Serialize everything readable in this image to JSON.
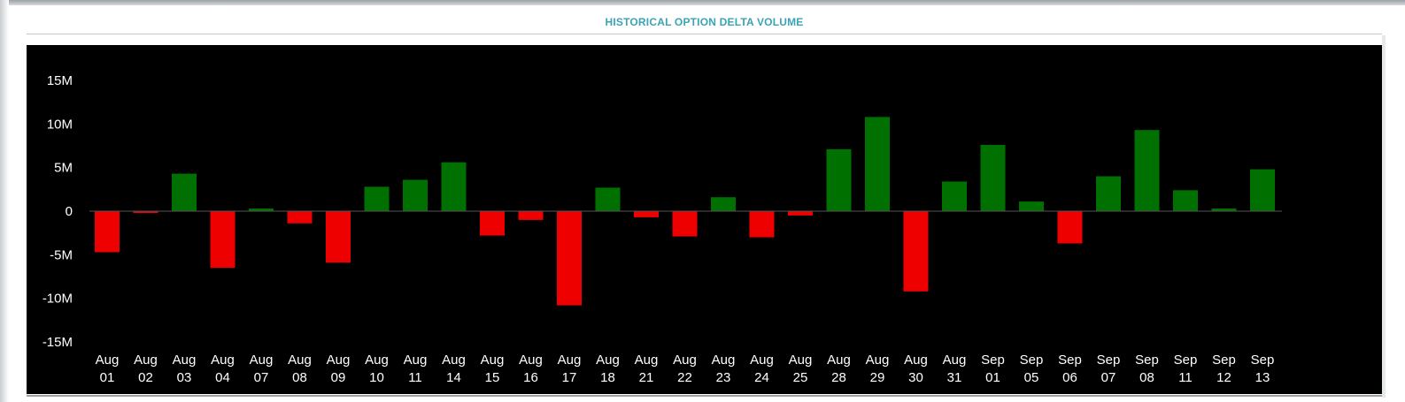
{
  "header": {
    "title": "HISTORICAL OPTION DELTA VOLUME"
  },
  "colors": {
    "positive": "#007000",
    "negative": "#ee0000",
    "background": "#000000",
    "text": "#ffffff",
    "title": "#3aa3b5"
  },
  "chart_data": {
    "type": "bar",
    "title": "HISTORICAL OPTION DELTA VOLUME",
    "xlabel": "",
    "ylabel": "",
    "ylim": [
      -15000000,
      15000000
    ],
    "yticks": [
      {
        "value": 15000000,
        "label": "15M"
      },
      {
        "value": 10000000,
        "label": "10M"
      },
      {
        "value": 5000000,
        "label": "5M"
      },
      {
        "value": 0,
        "label": "0"
      },
      {
        "value": -5000000,
        "label": "-5M"
      },
      {
        "value": -10000000,
        "label": "-10M"
      },
      {
        "value": -15000000,
        "label": "-15M"
      }
    ],
    "grid": false,
    "legend": "none",
    "categories": [
      {
        "month": "Aug",
        "day": "01"
      },
      {
        "month": "Aug",
        "day": "02"
      },
      {
        "month": "Aug",
        "day": "03"
      },
      {
        "month": "Aug",
        "day": "04"
      },
      {
        "month": "Aug",
        "day": "07"
      },
      {
        "month": "Aug",
        "day": "08"
      },
      {
        "month": "Aug",
        "day": "09"
      },
      {
        "month": "Aug",
        "day": "10"
      },
      {
        "month": "Aug",
        "day": "11"
      },
      {
        "month": "Aug",
        "day": "14"
      },
      {
        "month": "Aug",
        "day": "15"
      },
      {
        "month": "Aug",
        "day": "16"
      },
      {
        "month": "Aug",
        "day": "17"
      },
      {
        "month": "Aug",
        "day": "18"
      },
      {
        "month": "Aug",
        "day": "21"
      },
      {
        "month": "Aug",
        "day": "22"
      },
      {
        "month": "Aug",
        "day": "23"
      },
      {
        "month": "Aug",
        "day": "24"
      },
      {
        "month": "Aug",
        "day": "25"
      },
      {
        "month": "Aug",
        "day": "28"
      },
      {
        "month": "Aug",
        "day": "29"
      },
      {
        "month": "Aug",
        "day": "30"
      },
      {
        "month": "Aug",
        "day": "31"
      },
      {
        "month": "Sep",
        "day": "01"
      },
      {
        "month": "Sep",
        "day": "05"
      },
      {
        "month": "Sep",
        "day": "06"
      },
      {
        "month": "Sep",
        "day": "07"
      },
      {
        "month": "Sep",
        "day": "08"
      },
      {
        "month": "Sep",
        "day": "11"
      },
      {
        "month": "Sep",
        "day": "12"
      },
      {
        "month": "Sep",
        "day": "13"
      }
    ],
    "values": [
      -4700000,
      -200000,
      4300000,
      -6500000,
      300000,
      -1400000,
      -5900000,
      2800000,
      3600000,
      5600000,
      -2800000,
      -1000000,
      -10800000,
      2700000,
      -700000,
      -2900000,
      1600000,
      -3000000,
      -500000,
      7100000,
      10800000,
      -9200000,
      3400000,
      7600000,
      1100000,
      -3700000,
      4000000,
      9300000,
      2400000,
      300000,
      4800000
    ]
  }
}
